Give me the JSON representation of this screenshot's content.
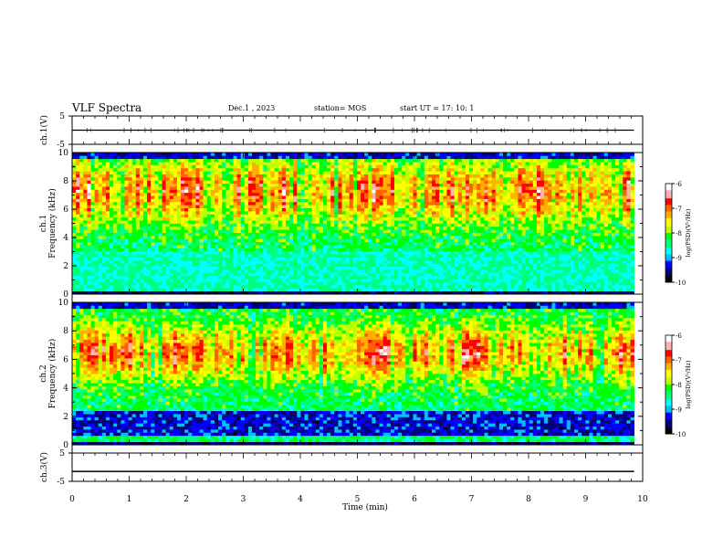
{
  "header": {
    "title": "VLF Spectra",
    "date": "Dec.1 , 2023",
    "station": "station= MOS",
    "start": "start UT = 17: 10: 1"
  },
  "chart_data": [
    {
      "type": "line",
      "panel": "ch1-waveform",
      "ylabel": "ch.1(V)",
      "ylim": [
        -5,
        5
      ],
      "yticks": [
        "5",
        "-5"
      ],
      "xlim": [
        0,
        10
      ],
      "x": [
        0,
        9.85
      ],
      "values": [
        0,
        0
      ]
    },
    {
      "type": "heatmap",
      "panel": "ch1-spectrogram",
      "ylabel": "ch.1 Frequency (kHz)",
      "ylim": [
        0,
        10
      ],
      "yticks": [
        "0",
        "2",
        "4",
        "6",
        "8",
        "10"
      ],
      "xlim": [
        0,
        10
      ],
      "x_extent": [
        0,
        9.85
      ],
      "colorbar": {
        "label": "log(PSD)(V²/Hz)",
        "ticks": [
          "-6",
          "-7",
          "-8",
          "-9",
          "-10"
        ],
        "range": [
          -10,
          -6
        ]
      },
      "intense_band_khz": [
        5.5,
        9
      ]
    },
    {
      "type": "heatmap",
      "panel": "ch2-spectrogram",
      "ylabel": "ch.2 Frequency (kHz)",
      "ylim": [
        0,
        10
      ],
      "yticks": [
        "0",
        "2",
        "4",
        "6",
        "8",
        "10"
      ],
      "xlim": [
        0,
        10
      ],
      "x_extent": [
        0,
        9.85
      ],
      "colorbar": {
        "label": "log(PSD)(V²/Hz)",
        "ticks": [
          "-6",
          "-7",
          "-8",
          "-9",
          "-10"
        ],
        "range": [
          -10,
          -6
        ]
      },
      "intense_band_khz": [
        5,
        8
      ]
    },
    {
      "type": "line",
      "panel": "ch3-waveform",
      "ylabel": "ch.3(V)",
      "ylim": [
        -5,
        5
      ],
      "yticks": [
        "5",
        "-5"
      ],
      "xlim": [
        0,
        10
      ],
      "x": [
        0,
        9.85
      ],
      "values": [
        -1.5,
        -1.5
      ]
    }
  ],
  "xaxis": {
    "label": "Time (min)",
    "ticks": [
      "0",
      "1",
      "2",
      "3",
      "4",
      "5",
      "6",
      "7",
      "8",
      "9",
      "10"
    ]
  },
  "colormap": [
    "#000000",
    "#00007a",
    "#0000ff",
    "#00bfff",
    "#00ffff",
    "#00ff7f",
    "#00ff00",
    "#bfff00",
    "#ffff00",
    "#ffb000",
    "#ff6000",
    "#ff0000",
    "#ffb0b0",
    "#ffffff"
  ]
}
